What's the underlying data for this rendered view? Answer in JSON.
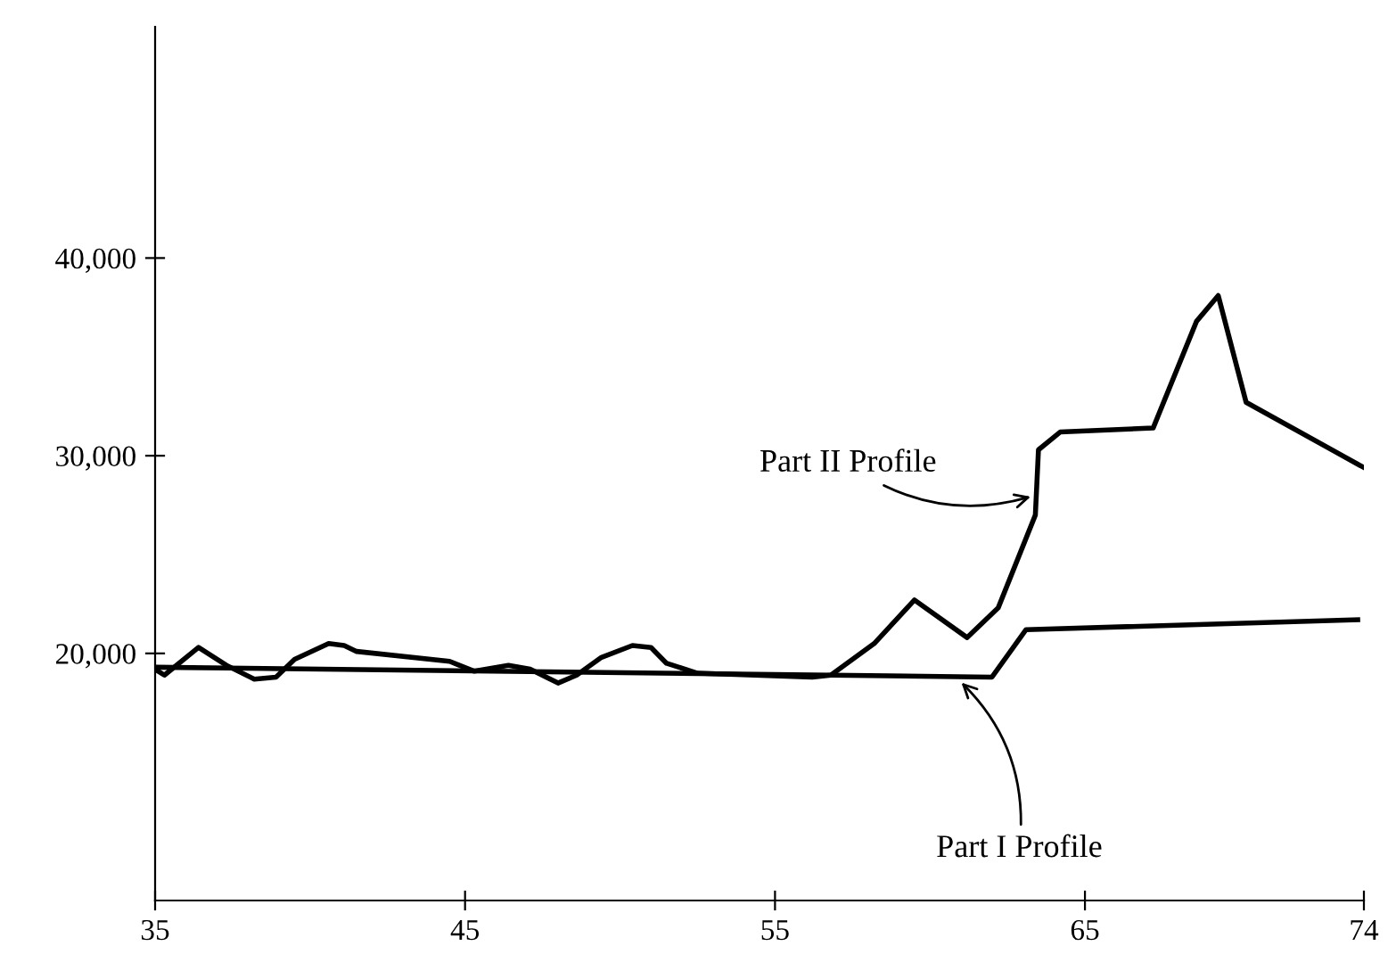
{
  "chart_data": {
    "type": "line",
    "series": [
      {
        "color": "#000000",
        "x": [
          35,
          62.0,
          63.1,
          73.8
        ],
        "values": [
          19300,
          18800,
          21200,
          21700
        ]
      },
      {
        "color": "#000000",
        "x": [
          35,
          35.3,
          36.4,
          37.3,
          38.2,
          38.9,
          39.5,
          40.6,
          41.1,
          41.5,
          44.5,
          45.3,
          46.4,
          47.1,
          48.0,
          48.6,
          49.4,
          50.4,
          51.0,
          51.5,
          52.5,
          56.2,
          56.8,
          58.2,
          59.5,
          61.2,
          62.2,
          63.4,
          63.5,
          64.2,
          67.2,
          68.6,
          69.3,
          70.2,
          74.0
        ],
        "values": [
          19200,
          18900,
          20300,
          19400,
          18700,
          18800,
          19700,
          20500,
          20400,
          20100,
          19600,
          19100,
          19400,
          19200,
          18500,
          18900,
          19800,
          20400,
          20300,
          19500,
          19000,
          18800,
          18900,
          20500,
          22700,
          20800,
          22300,
          27000,
          30300,
          31200,
          31400,
          36800,
          38100,
          32700,
          29400
        ]
      }
    ],
    "annotations": [
      {
        "text": "Part II Profile",
        "x": 63.4,
        "y": 28000
      },
      {
        "text": "Part I Profile",
        "x": 60.9,
        "y": 18700
      }
    ],
    "xlim": [
      35,
      74
    ],
    "xticks": [
      35,
      45,
      55,
      65,
      74
    ],
    "ylim": [
      7500,
      51700
    ],
    "yticks": [
      {
        "value": 20000,
        "label": "20,000"
      },
      {
        "value": 30000,
        "label": "30,000"
      },
      {
        "value": 40000,
        "label": "40,000"
      }
    ],
    "grid": false,
    "legend": false,
    "marker": "none",
    "line_style": "solid"
  }
}
